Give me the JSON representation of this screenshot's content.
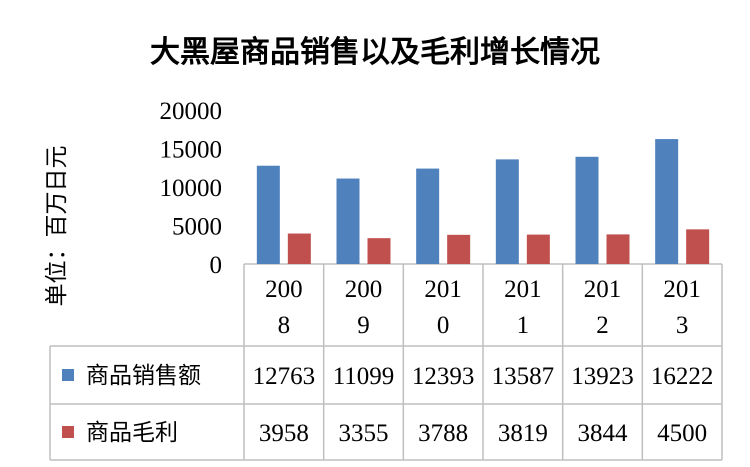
{
  "chart_data": {
    "type": "bar",
    "title": "大黑屋商品销售以及毛利增长情况",
    "ylabel": "单位：百万日元",
    "xlabel": "",
    "ylim": [
      0,
      20000
    ],
    "yticks": [
      "20000",
      "15000",
      "10000",
      "5000",
      "0"
    ],
    "grid": false,
    "legend": "data-table",
    "categories": [
      [
        "200",
        "8"
      ],
      [
        "200",
        "9"
      ],
      [
        "201",
        "0"
      ],
      [
        "201",
        "1"
      ],
      [
        "201",
        "2"
      ],
      [
        "201",
        "3"
      ]
    ],
    "series": [
      {
        "name": "商品销售额",
        "color": "#4f81bd",
        "values": [
          12763,
          11099,
          12393,
          13587,
          13923,
          16222
        ]
      },
      {
        "name": "商品毛利",
        "color": "#c0504d",
        "values": [
          3958,
          3355,
          3788,
          3819,
          3844,
          4500
        ]
      }
    ],
    "table": {
      "rows": [
        [
          "12763",
          "11099",
          "12393",
          "13587",
          "13923",
          "16222"
        ],
        [
          "3958",
          "3355",
          "3788",
          "3819",
          "3844",
          "4500"
        ]
      ]
    }
  }
}
